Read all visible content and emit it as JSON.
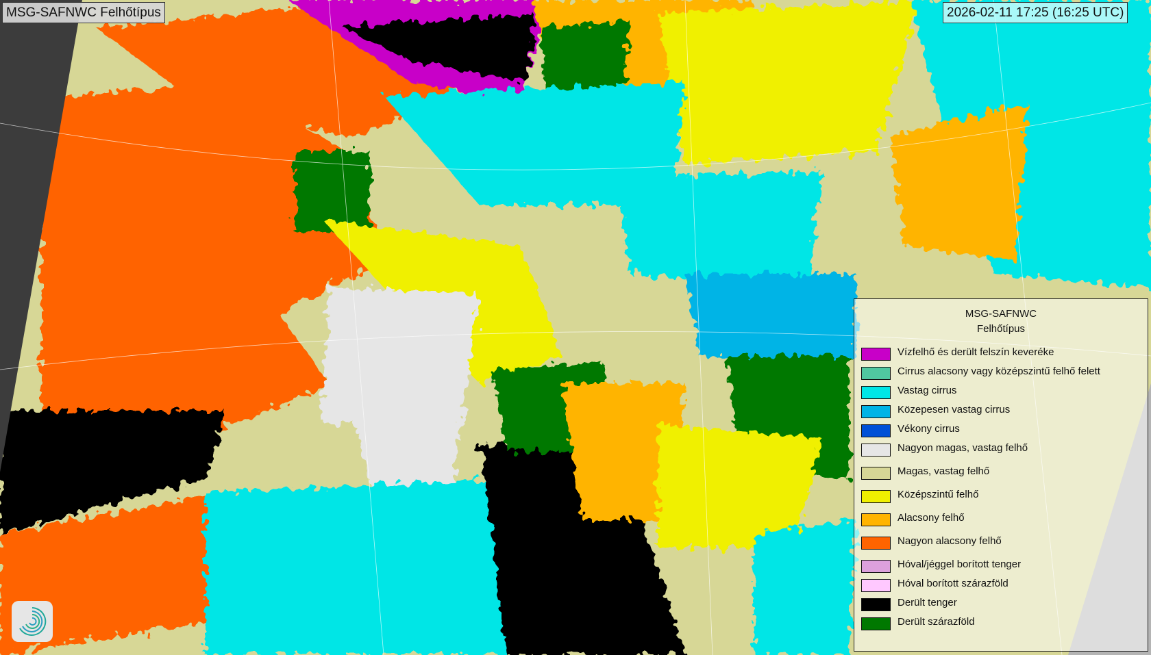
{
  "header": {
    "title": "MSG-SAFNWC Felhőtípus",
    "timestamp": "2026-02-11 17:25 (16:25 UTC)"
  },
  "legend": {
    "title_line1": "MSG-SAFNWC",
    "title_line2": "Felhőtípus",
    "items": [
      {
        "label": "Vízfelhő és derült felszín keveréke",
        "color": "#c800c8"
      },
      {
        "label": "Cirrus alacsony vagy középszintű felhő felett",
        "color": "#50c8a0"
      },
      {
        "label": "Vastag cirrus",
        "color": "#00e6e6"
      },
      {
        "label": "Közepesen vastag cirrus",
        "color": "#00b4e6"
      },
      {
        "label": "Vékony cirrus",
        "color": "#0050d7"
      },
      {
        "label": "Nagyon magas, vastag felhő",
        "color": "#e6e6e6"
      },
      {
        "label": "Magas, vastag felhő",
        "color": "#d7d796"
      },
      {
        "label": "Középszintű felhő",
        "color": "#f0f000"
      },
      {
        "label": "Alacsony felhő",
        "color": "#ffb400"
      },
      {
        "label": "Nagyon alacsony felhő",
        "color": "#ff6400"
      },
      {
        "label": "Hóval/jéggel borított tenger",
        "color": "#dca0dc"
      },
      {
        "label": "Hóval borított szárazföld",
        "color": "#ffc8ff"
      },
      {
        "label": "Derült tenger",
        "color": "#000000"
      },
      {
        "label": "Derült szárazföld",
        "color": "#007800"
      }
    ]
  },
  "map": {
    "no_data_color": "#3c3c3c",
    "outside_scan_color": "#b4b4b4"
  },
  "logo": {
    "icon": "swirl-logo-icon"
  }
}
